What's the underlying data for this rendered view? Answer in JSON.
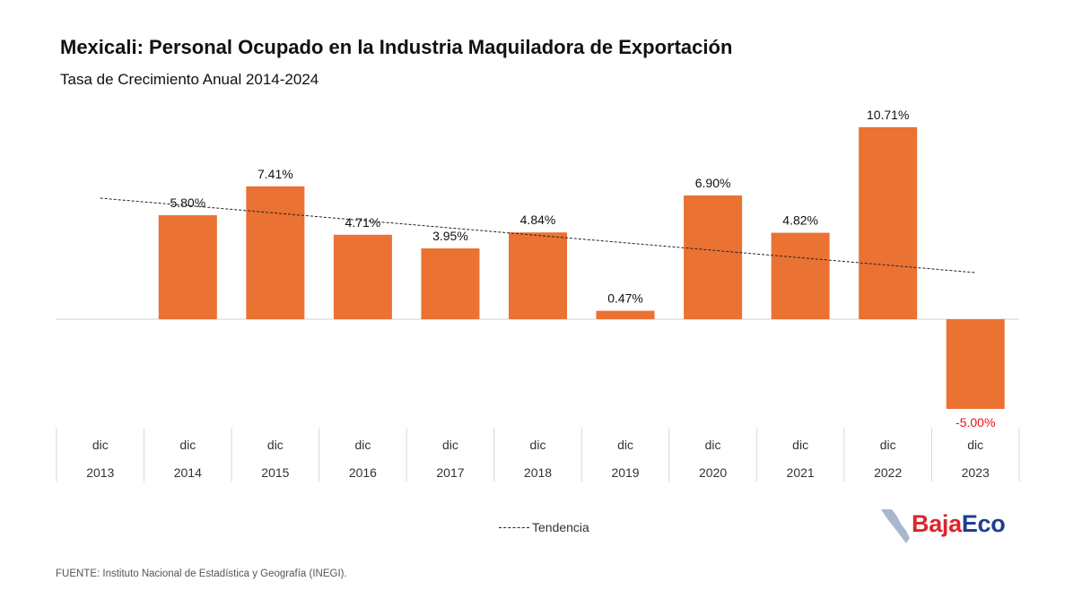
{
  "title": "Mexicali: Personal Ocupado en la Industria Maquiladora de Exportación",
  "subtitle": "Tasa de Crecimiento Anual  2014-2024",
  "legend": {
    "trend_label": "Tendencia"
  },
  "source": "FUENTE: Instituto Nacional de Estadística y Geografía (INEGI).",
  "logo": {
    "part1": "Baja",
    "part2": "Eco"
  },
  "colors": {
    "bar": "#EA7233",
    "negative_label": "#E8121B",
    "trend": "#222222"
  },
  "chart_data": {
    "type": "bar",
    "categories": [
      {
        "month": "dic",
        "year": "2013"
      },
      {
        "month": "dic",
        "year": "2014"
      },
      {
        "month": "dic",
        "year": "2015"
      },
      {
        "month": "dic",
        "year": "2016"
      },
      {
        "month": "dic",
        "year": "2017"
      },
      {
        "month": "dic",
        "year": "2018"
      },
      {
        "month": "dic",
        "year": "2019"
      },
      {
        "month": "dic",
        "year": "2020"
      },
      {
        "month": "dic",
        "year": "2021"
      },
      {
        "month": "dic",
        "year": "2022"
      },
      {
        "month": "dic",
        "year": "2023"
      }
    ],
    "values": [
      null,
      5.8,
      7.41,
      4.71,
      3.95,
      4.84,
      0.47,
      6.9,
      4.82,
      10.71,
      -5.0
    ],
    "labels": [
      "",
      "5.80%",
      "7.41%",
      "4.71%",
      "3.95%",
      "4.84%",
      "0.47%",
      "6.90%",
      "4.82%",
      "10.71%",
      "-5.00%"
    ],
    "trendline": {
      "name": "Tendencia",
      "start": 6.75,
      "end": 2.6
    },
    "ylim": [
      -6,
      12
    ],
    "grid": false,
    "legend_position": "bottom"
  }
}
